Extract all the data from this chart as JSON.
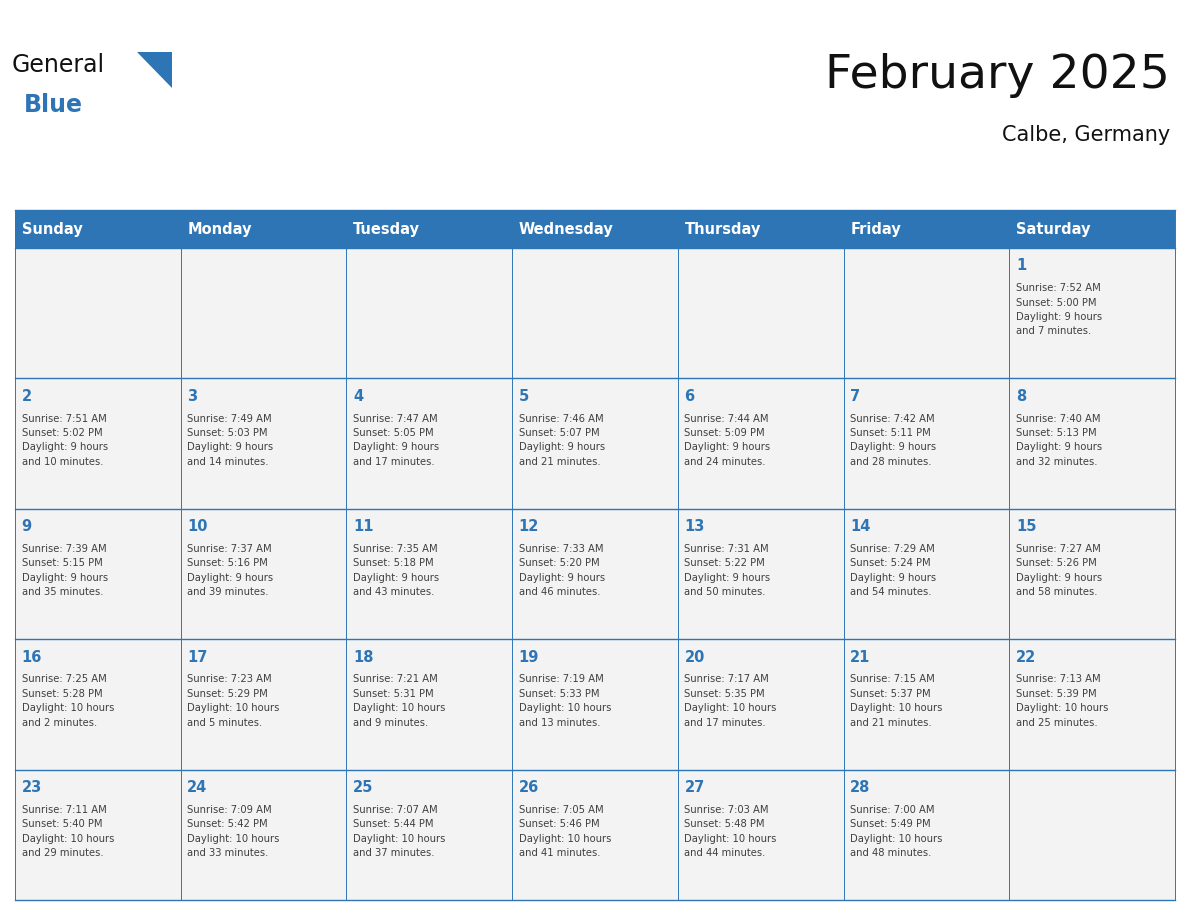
{
  "title": "February 2025",
  "subtitle": "Calbe, Germany",
  "days_of_week": [
    "Sunday",
    "Monday",
    "Tuesday",
    "Wednesday",
    "Thursday",
    "Friday",
    "Saturday"
  ],
  "header_bg_color": "#2E75B6",
  "header_text_color": "#FFFFFF",
  "cell_bg_color": "#FFFFFF",
  "border_color": "#2E75B6",
  "day_number_color": "#2E75B6",
  "text_color": "#404040",
  "title_color": "#111111",
  "logo_text_color": "#1a1a1a",
  "logo_blue_color": "#2E75B6",
  "calendar_data": [
    [
      {
        "day": null,
        "info": null
      },
      {
        "day": null,
        "info": null
      },
      {
        "day": null,
        "info": null
      },
      {
        "day": null,
        "info": null
      },
      {
        "day": null,
        "info": null
      },
      {
        "day": null,
        "info": null
      },
      {
        "day": 1,
        "info": "Sunrise: 7:52 AM\nSunset: 5:00 PM\nDaylight: 9 hours\nand 7 minutes."
      }
    ],
    [
      {
        "day": 2,
        "info": "Sunrise: 7:51 AM\nSunset: 5:02 PM\nDaylight: 9 hours\nand 10 minutes."
      },
      {
        "day": 3,
        "info": "Sunrise: 7:49 AM\nSunset: 5:03 PM\nDaylight: 9 hours\nand 14 minutes."
      },
      {
        "day": 4,
        "info": "Sunrise: 7:47 AM\nSunset: 5:05 PM\nDaylight: 9 hours\nand 17 minutes."
      },
      {
        "day": 5,
        "info": "Sunrise: 7:46 AM\nSunset: 5:07 PM\nDaylight: 9 hours\nand 21 minutes."
      },
      {
        "day": 6,
        "info": "Sunrise: 7:44 AM\nSunset: 5:09 PM\nDaylight: 9 hours\nand 24 minutes."
      },
      {
        "day": 7,
        "info": "Sunrise: 7:42 AM\nSunset: 5:11 PM\nDaylight: 9 hours\nand 28 minutes."
      },
      {
        "day": 8,
        "info": "Sunrise: 7:40 AM\nSunset: 5:13 PM\nDaylight: 9 hours\nand 32 minutes."
      }
    ],
    [
      {
        "day": 9,
        "info": "Sunrise: 7:39 AM\nSunset: 5:15 PM\nDaylight: 9 hours\nand 35 minutes."
      },
      {
        "day": 10,
        "info": "Sunrise: 7:37 AM\nSunset: 5:16 PM\nDaylight: 9 hours\nand 39 minutes."
      },
      {
        "day": 11,
        "info": "Sunrise: 7:35 AM\nSunset: 5:18 PM\nDaylight: 9 hours\nand 43 minutes."
      },
      {
        "day": 12,
        "info": "Sunrise: 7:33 AM\nSunset: 5:20 PM\nDaylight: 9 hours\nand 46 minutes."
      },
      {
        "day": 13,
        "info": "Sunrise: 7:31 AM\nSunset: 5:22 PM\nDaylight: 9 hours\nand 50 minutes."
      },
      {
        "day": 14,
        "info": "Sunrise: 7:29 AM\nSunset: 5:24 PM\nDaylight: 9 hours\nand 54 minutes."
      },
      {
        "day": 15,
        "info": "Sunrise: 7:27 AM\nSunset: 5:26 PM\nDaylight: 9 hours\nand 58 minutes."
      }
    ],
    [
      {
        "day": 16,
        "info": "Sunrise: 7:25 AM\nSunset: 5:28 PM\nDaylight: 10 hours\nand 2 minutes."
      },
      {
        "day": 17,
        "info": "Sunrise: 7:23 AM\nSunset: 5:29 PM\nDaylight: 10 hours\nand 5 minutes."
      },
      {
        "day": 18,
        "info": "Sunrise: 7:21 AM\nSunset: 5:31 PM\nDaylight: 10 hours\nand 9 minutes."
      },
      {
        "day": 19,
        "info": "Sunrise: 7:19 AM\nSunset: 5:33 PM\nDaylight: 10 hours\nand 13 minutes."
      },
      {
        "day": 20,
        "info": "Sunrise: 7:17 AM\nSunset: 5:35 PM\nDaylight: 10 hours\nand 17 minutes."
      },
      {
        "day": 21,
        "info": "Sunrise: 7:15 AM\nSunset: 5:37 PM\nDaylight: 10 hours\nand 21 minutes."
      },
      {
        "day": 22,
        "info": "Sunrise: 7:13 AM\nSunset: 5:39 PM\nDaylight: 10 hours\nand 25 minutes."
      }
    ],
    [
      {
        "day": 23,
        "info": "Sunrise: 7:11 AM\nSunset: 5:40 PM\nDaylight: 10 hours\nand 29 minutes."
      },
      {
        "day": 24,
        "info": "Sunrise: 7:09 AM\nSunset: 5:42 PM\nDaylight: 10 hours\nand 33 minutes."
      },
      {
        "day": 25,
        "info": "Sunrise: 7:07 AM\nSunset: 5:44 PM\nDaylight: 10 hours\nand 37 minutes."
      },
      {
        "day": 26,
        "info": "Sunrise: 7:05 AM\nSunset: 5:46 PM\nDaylight: 10 hours\nand 41 minutes."
      },
      {
        "day": 27,
        "info": "Sunrise: 7:03 AM\nSunset: 5:48 PM\nDaylight: 10 hours\nand 44 minutes."
      },
      {
        "day": 28,
        "info": "Sunrise: 7:00 AM\nSunset: 5:49 PM\nDaylight: 10 hours\nand 48 minutes."
      },
      {
        "day": null,
        "info": null
      }
    ]
  ],
  "figsize": [
    11.88,
    9.18
  ],
  "dpi": 100
}
